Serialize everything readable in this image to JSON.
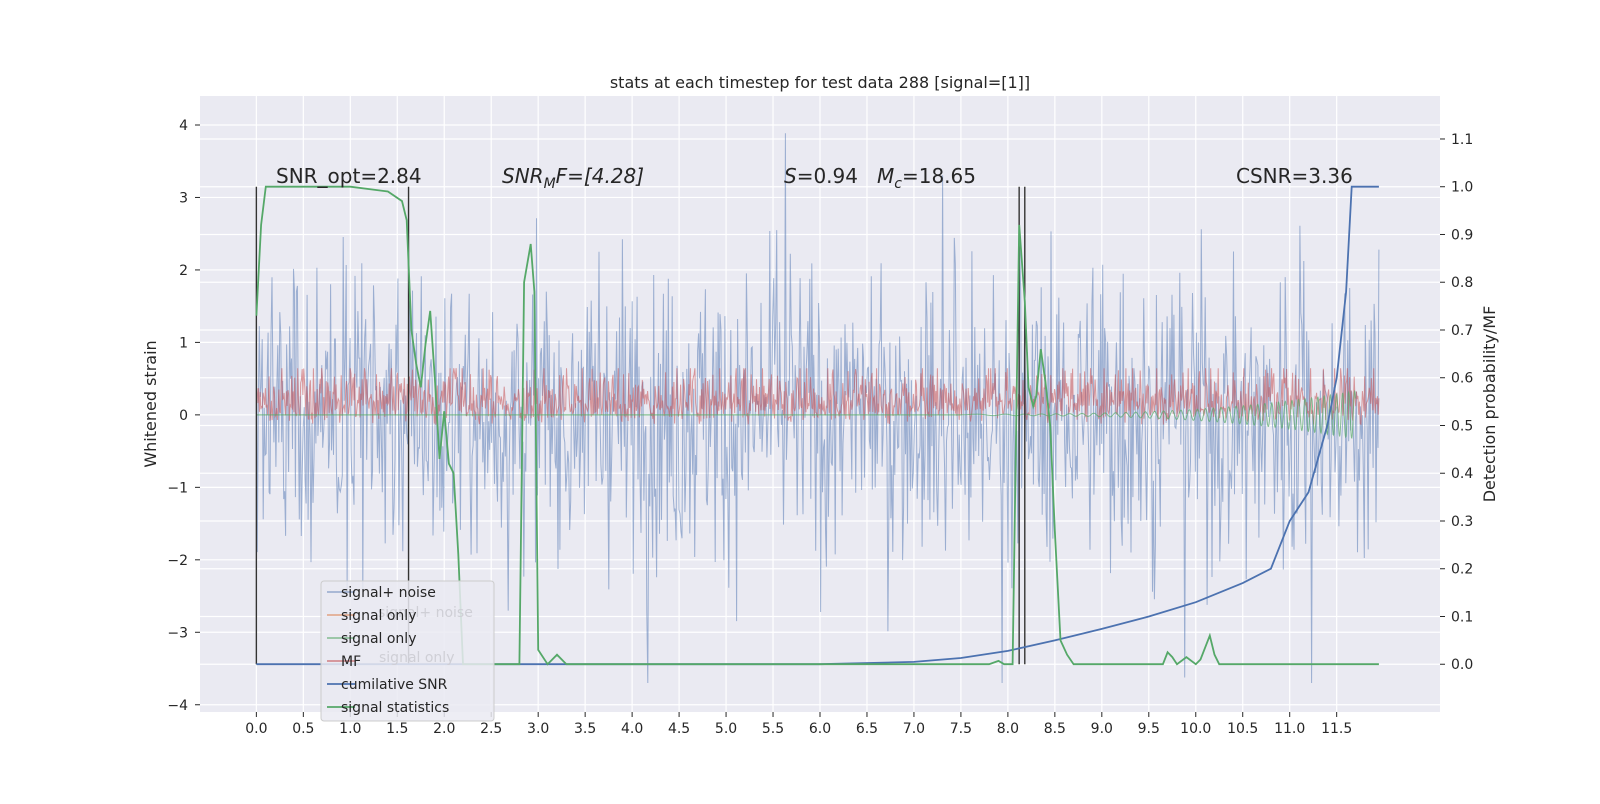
{
  "chart_data": {
    "type": "line",
    "title": "stats at each timestep for test data 288 [signal=[1]]",
    "ylabel": "Whitened strain",
    "y2label": "Detection probability/MF",
    "xlabel": "",
    "xlim": [
      -0.6,
      12.6
    ],
    "ylim": [
      -4.1,
      4.4
    ],
    "y2lim": [
      -0.1,
      1.19
    ],
    "x_ticks": [
      "0.0",
      "0.5",
      "1.0",
      "1.5",
      "2.0",
      "2.5",
      "3.0",
      "3.5",
      "4.0",
      "4.5",
      "5.0",
      "5.5",
      "6.0",
      "6.5",
      "7.0",
      "7.5",
      "8.0",
      "8.5",
      "9.0",
      "9.5",
      "10.0",
      "10.5",
      "11.0",
      "11.5"
    ],
    "y_ticks": [
      "4",
      "3",
      "2",
      "1",
      "0",
      "−1",
      "−2",
      "−3",
      "−4"
    ],
    "y2_ticks": [
      "1.1",
      "1.0",
      "0.9",
      "0.8",
      "0.7",
      "0.6",
      "0.5",
      "0.4",
      "0.3",
      "0.2",
      "0.1",
      "0.0"
    ],
    "grid": true,
    "legend_position": "lower-left",
    "annotations": {
      "snr_opt": "SNR_opt=2.84",
      "snr_mf_base": "SNR",
      "snr_mf_sub": "M",
      "snr_mf_rest": "F=[4.28]",
      "s_italic": "S",
      "s_value": "=0.94",
      "mc_base": "M",
      "mc_sub": "c",
      "mc_value": "=18.65",
      "csnr": "CSNR=3.36"
    },
    "legend": [
      {
        "label": "signal+ noise",
        "color": "#4c72b0"
      },
      {
        "label": "signal only",
        "color": "#dd8452"
      },
      {
        "label": "signal only",
        "color": "#55a868"
      },
      {
        "label": "MF",
        "color": "#c44e52"
      },
      {
        "label": "cumilative SNR",
        "color": "#4c72b0"
      },
      {
        "label": "signal statistics",
        "color": "#55a868"
      }
    ],
    "legend_ghost_labels": [
      "signal+ noise",
      "signal only"
    ],
    "series": [
      {
        "name": "signal+ noise",
        "x_range": [
          0.0,
          11.95
        ],
        "y_range": [
          -3.7,
          4.1
        ],
        "color": "#4c72b0"
      },
      {
        "name": "MF",
        "x_range": [
          0.0,
          11.95
        ],
        "y_range": [
          0.0,
          0.98
        ],
        "color": "#c44e52"
      },
      {
        "name": "cumilative SNR",
        "axis": "right",
        "x": [
          0.0,
          3.0,
          6.0,
          7.0,
          7.5,
          8.0,
          8.5,
          9.0,
          9.5,
          10.0,
          10.5,
          10.8,
          11.0,
          11.2,
          11.4,
          11.5,
          11.6,
          11.66,
          11.7,
          11.95
        ],
        "y": [
          0.0,
          0.0,
          0.0,
          0.005,
          0.013,
          0.028,
          0.05,
          0.074,
          0.1,
          0.13,
          0.17,
          0.2,
          0.3,
          0.36,
          0.5,
          0.6,
          0.78,
          1.0,
          1.0,
          1.0
        ],
        "color": "#4c72b0"
      },
      {
        "name": "signal statistics",
        "axis": "right",
        "x": [
          0.0,
          0.05,
          0.1,
          0.3,
          0.6,
          1.0,
          1.4,
          1.55,
          1.6,
          1.65,
          1.7,
          1.75,
          1.8,
          1.85,
          1.9,
          1.95,
          2.0,
          2.05,
          2.1,
          2.15,
          2.2,
          2.5,
          2.7,
          2.8,
          2.85,
          2.92,
          2.96,
          3.0,
          3.1,
          3.2,
          3.3,
          3.4,
          3.6,
          6.0,
          7.8,
          7.9,
          7.96,
          8.05,
          8.12,
          8.18,
          8.22,
          8.27,
          8.3,
          8.35,
          8.4,
          8.45,
          8.5,
          8.56,
          8.63,
          8.7,
          8.8,
          8.9,
          9.0,
          9.3,
          9.5,
          9.55,
          9.65,
          9.7,
          9.75,
          9.8,
          9.9,
          10.0,
          10.05,
          10.15,
          10.2,
          10.25,
          10.35,
          10.5,
          11.0,
          11.95
        ],
        "y": [
          0.73,
          0.92,
          1.0,
          1.0,
          1.0,
          1.0,
          0.99,
          0.97,
          0.93,
          0.7,
          0.63,
          0.58,
          0.67,
          0.74,
          0.6,
          0.43,
          0.53,
          0.42,
          0.4,
          0.23,
          0.0,
          0.0,
          0.0,
          0.0,
          0.8,
          0.88,
          0.78,
          0.03,
          0.0,
          0.02,
          0.0,
          0.0,
          0.0,
          0.0,
          0.0,
          0.007,
          0.0,
          0.0,
          0.92,
          0.76,
          0.58,
          0.54,
          0.56,
          0.66,
          0.59,
          0.5,
          0.28,
          0.05,
          0.02,
          0.0,
          0.0,
          0.0,
          0.0,
          0.0,
          0.0,
          0.0,
          0.0,
          0.025,
          0.015,
          0.0,
          0.015,
          0.0,
          0.01,
          0.06,
          0.02,
          0.0,
          0.0,
          0.0,
          0.0,
          0.0
        ],
        "color": "#55a868"
      }
    ],
    "vertical_markers_x": [
      0.0,
      1.62,
      8.12,
      8.18
    ]
  }
}
